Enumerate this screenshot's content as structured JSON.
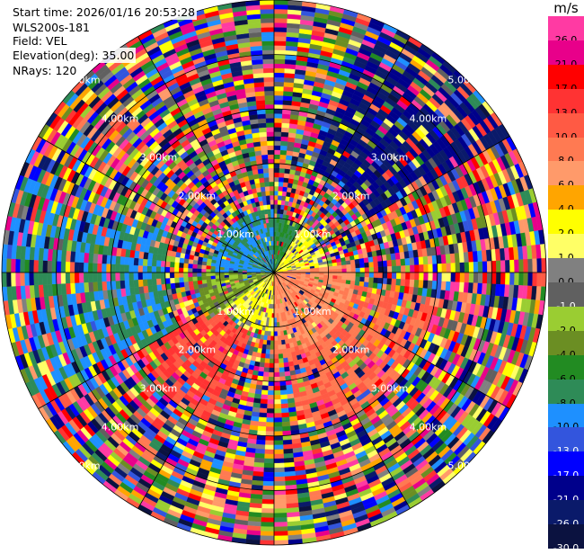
{
  "info": {
    "start_time": "Start time: 2026/01/16 20:53:28",
    "instrument": "WLS200s-181",
    "field": "Field: VEL",
    "elevation": "Elevation(deg): 35.00",
    "nrays": "NRays: 120"
  },
  "colorbar": {
    "unit": "m/s",
    "levels": [
      {
        "label": "26.0",
        "color": "#ff3aa3",
        "text": "#000000"
      },
      {
        "label": "21.0",
        "color": "#e8008a",
        "text": "#000000"
      },
      {
        "label": "17.0",
        "color": "#ff0000",
        "text": "#000000"
      },
      {
        "label": "13.0",
        "color": "#ff3333",
        "text": "#000000"
      },
      {
        "label": "10.0",
        "color": "#ff5a44",
        "text": "#000000"
      },
      {
        "label": "8.0",
        "color": "#ff7a52",
        "text": "#000000"
      },
      {
        "label": "6.0",
        "color": "#ff9a6a",
        "text": "#000000"
      },
      {
        "label": "4.0",
        "color": "#ffa500",
        "text": "#000000"
      },
      {
        "label": "2.0",
        "color": "#ffff00",
        "text": "#000000"
      },
      {
        "label": "1.0",
        "color": "#ffff66",
        "text": "#000000"
      },
      {
        "label": "0.0",
        "color": "#808080",
        "text": "#000000"
      },
      {
        "label": "-1.0",
        "color": "#606060",
        "text": "#ffffff"
      },
      {
        "label": "-2.0",
        "color": "#9acd32",
        "text": "#000000"
      },
      {
        "label": "-4.0",
        "color": "#6b8e23",
        "text": "#000000"
      },
      {
        "label": "-6.0",
        "color": "#228b22",
        "text": "#000000"
      },
      {
        "label": "-8.0",
        "color": "#2e8b57",
        "text": "#000000"
      },
      {
        "label": "-10.0",
        "color": "#1e90ff",
        "text": "#000000"
      },
      {
        "label": "-13.0",
        "color": "#3355dd",
        "text": "#ffffff"
      },
      {
        "label": "-17.0",
        "color": "#0000ff",
        "text": "#ffffff"
      },
      {
        "label": "-21.0",
        "color": "#00008b",
        "text": "#ffffff"
      },
      {
        "label": "-26.0",
        "color": "#0a1a6a",
        "text": "#ffffff"
      },
      {
        "label": "-30.0",
        "color": "#0b1240",
        "text": "#ffffff"
      }
    ]
  },
  "chart_data": {
    "type": "heatmap",
    "projection": "polar-ppi",
    "field": "VEL",
    "units": "m/s",
    "nrays": 120,
    "rings": [
      "1.00km",
      "2.00km",
      "3.00km",
      "4.00km",
      "5.00km"
    ],
    "range_max_km": 5.0,
    "azimuth_spokes_deg": [
      0,
      30,
      60,
      90,
      120,
      150,
      180,
      210,
      240,
      270,
      300,
      330
    ],
    "sectors_approx": [
      {
        "azimuth_from": 0,
        "azimuth_to": 30,
        "range_km": [
          0,
          1.0
        ],
        "velocity_ms": -6.0
      },
      {
        "azimuth_from": 30,
        "azimuth_to": 85,
        "range_km": [
          0,
          1.0
        ],
        "velocity_ms": 2.0
      },
      {
        "azimuth_from": 85,
        "azimuth_to": 180,
        "range_km": [
          0,
          1.5
        ],
        "velocity_ms": 8.0
      },
      {
        "azimuth_from": 180,
        "azimuth_to": 235,
        "range_km": [
          0,
          1.2
        ],
        "velocity_ms": 2.0
      },
      {
        "azimuth_from": 235,
        "azimuth_to": 270,
        "range_km": [
          0,
          1.5
        ],
        "velocity_ms": -2.0
      },
      {
        "azimuth_from": 270,
        "azimuth_to": 360,
        "range_km": [
          0,
          1.2
        ],
        "velocity_ms": -8.0
      },
      {
        "azimuth_from": 20,
        "azimuth_to": 60,
        "range_km": [
          2.0,
          5.0
        ],
        "velocity_ms": -21.0
      },
      {
        "azimuth_from": 100,
        "azimuth_to": 170,
        "range_km": [
          1.0,
          3.0
        ],
        "velocity_ms": 10.0
      },
      {
        "azimuth_from": 200,
        "azimuth_to": 240,
        "range_km": [
          1.0,
          3.0
        ],
        "velocity_ms": 13.0
      },
      {
        "azimuth_from": 240,
        "azimuth_to": 290,
        "range_km": [
          2.0,
          5.0
        ],
        "velocity_ms": -8.0
      }
    ],
    "notes_visible": "outer ranges (>3 km) show noisy, random velocity values in all colorbar bins"
  }
}
